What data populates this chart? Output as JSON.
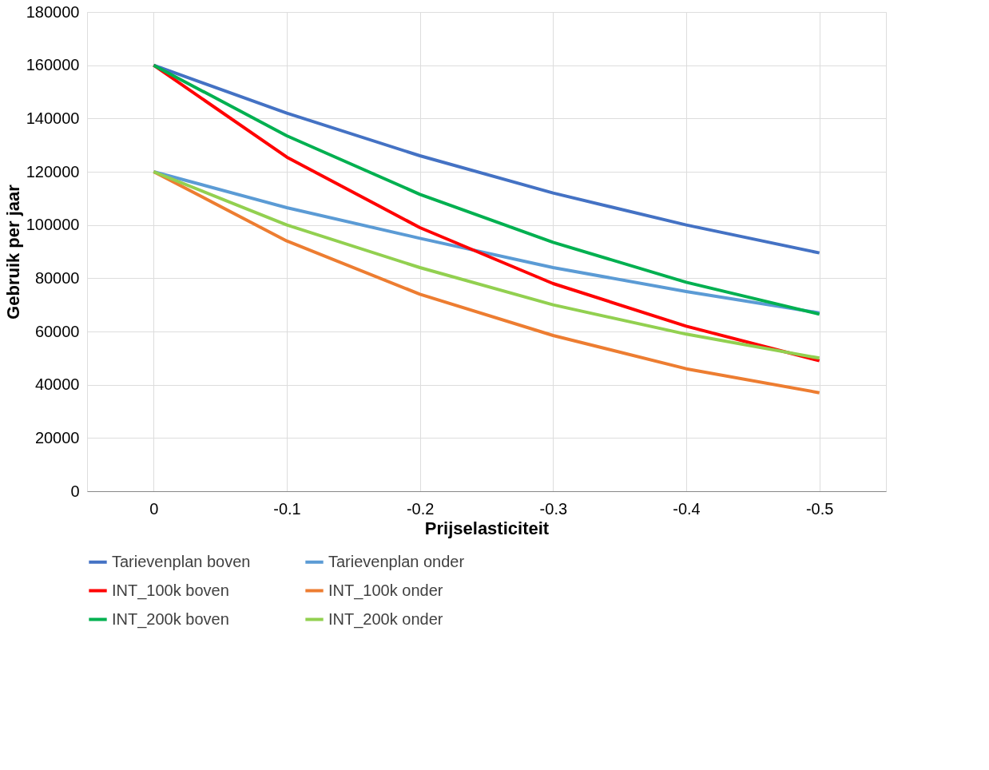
{
  "chart_data": {
    "type": "line",
    "xlabel": "Prijselasticiteit",
    "ylabel": "Gebruik per jaar",
    "categories": [
      "0",
      "-0.1",
      "-0.2",
      "-0.3",
      "-0.4",
      "-0.5"
    ],
    "series": [
      {
        "name": "Tarievenplan boven",
        "color": "#4472c4",
        "values": [
          160000,
          142000,
          126000,
          112000,
          100000,
          89500
        ]
      },
      {
        "name": "Tarievenplan onder",
        "color": "#5b9bd5",
        "values": [
          120000,
          106500,
          95000,
          84000,
          75000,
          67000
        ]
      },
      {
        "name": "INT_100k boven",
        "color": "#ff0000",
        "values": [
          160000,
          125500,
          99000,
          78000,
          62000,
          49000
        ]
      },
      {
        "name": "INT_100k onder",
        "color": "#ed7d31",
        "values": [
          120000,
          94000,
          74000,
          58500,
          46000,
          37000
        ]
      },
      {
        "name": "INT_200k boven",
        "color": "#00b050",
        "values": [
          160000,
          133500,
          111500,
          93500,
          78500,
          66500
        ]
      },
      {
        "name": "INT_200k onder",
        "color": "#92d050",
        "values": [
          120000,
          100000,
          84000,
          70000,
          59000,
          50000
        ]
      }
    ],
    "ylim": [
      0,
      180000
    ],
    "yticks": [
      0,
      20000,
      40000,
      60000,
      80000,
      100000,
      120000,
      140000,
      160000,
      180000
    ],
    "grid": true,
    "legend": "bottom",
    "marker": "none",
    "line_style": "solid"
  }
}
